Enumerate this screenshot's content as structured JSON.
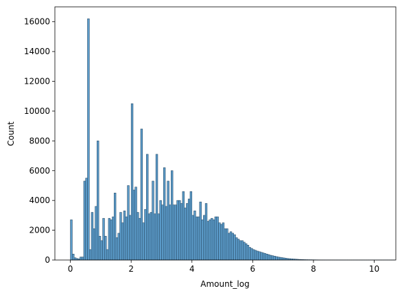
{
  "chart_data": {
    "type": "bar",
    "title": "",
    "xlabel": "Amount_log",
    "ylabel": "Count",
    "xlim": [
      -0.51,
      10.71
    ],
    "ylim": [
      0,
      17000
    ],
    "xticks": [
      0,
      2,
      4,
      6,
      8,
      10
    ],
    "yticks": [
      0,
      2000,
      4000,
      6000,
      8000,
      10000,
      12000,
      14000,
      16000
    ],
    "grid": false,
    "legend": "none",
    "colors": {
      "bar_fill": "#5b9bc9",
      "bar_edge": "#2c4f6b"
    },
    "bin_width": 0.0625,
    "x_start": 0,
    "values": [
      2700,
      400,
      150,
      100,
      80,
      200,
      200,
      5300,
      5500,
      16200,
      700,
      3200,
      2100,
      3600,
      8000,
      1600,
      1300,
      2800,
      1600,
      700,
      2800,
      2700,
      2900,
      4500,
      1500,
      1800,
      3200,
      2500,
      3300,
      2900,
      5000,
      3000,
      10500,
      4700,
      4900,
      3200,
      2800,
      8800,
      2500,
      3400,
      7100,
      3100,
      3200,
      5300,
      3100,
      7100,
      3100,
      4000,
      3700,
      6200,
      3600,
      5300,
      3700,
      6000,
      3700,
      3700,
      4000,
      4000,
      3800,
      4600,
      3500,
      3800,
      4100,
      4600,
      3000,
      3300,
      2900,
      2900,
      3900,
      2700,
      3000,
      3800,
      2600,
      2700,
      2800,
      2700,
      2900,
      2900,
      2500,
      2400,
      2500,
      2100,
      2100,
      1800,
      1900,
      1800,
      1700,
      1500,
      1400,
      1300,
      1300,
      1200,
      1100,
      1000,
      850,
      780,
      700,
      650,
      600,
      560,
      520,
      480,
      440,
      400,
      360,
      320,
      290,
      260,
      230,
      200,
      180,
      160,
      140,
      120,
      100,
      90,
      80,
      70,
      60,
      50,
      40,
      35,
      30,
      25,
      22,
      20,
      18,
      16,
      14,
      12,
      10,
      9,
      8,
      7,
      6,
      5,
      5,
      4,
      4,
      3,
      3,
      2,
      2,
      2,
      1,
      1,
      1,
      1,
      1,
      1,
      1,
      1,
      1,
      1,
      1,
      1,
      1,
      1,
      1,
      1,
      1,
      1,
      1,
      1,
      1,
      1,
      1,
      1,
      1,
      1,
      1
    ]
  }
}
